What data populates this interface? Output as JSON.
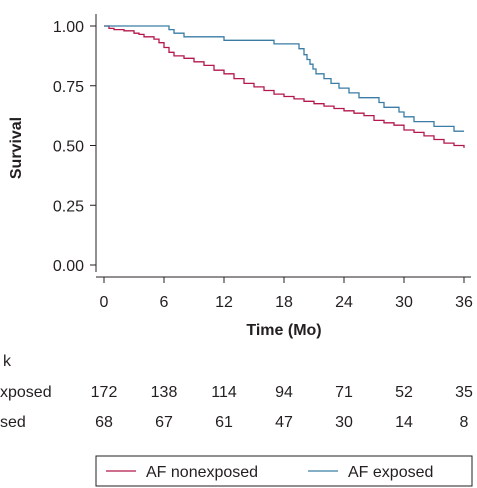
{
  "chart_data": {
    "type": "line",
    "ylabel": "Survival",
    "xlabel": "Time (Mo)",
    "xlim": [
      0,
      36
    ],
    "ylim": [
      0,
      1
    ],
    "x_ticks": [
      0,
      6,
      12,
      18,
      24,
      30,
      36
    ],
    "y_ticks": [
      "0.00",
      "0.25",
      "0.50",
      "0.75",
      "1.00"
    ],
    "grid": false,
    "legend_position": "bottom-right",
    "series": [
      {
        "name": "AF nonexposed",
        "color": "#b5174a",
        "step": true,
        "points": [
          [
            0,
            1.0
          ],
          [
            0.5,
            0.99
          ],
          [
            1.0,
            0.985
          ],
          [
            2.0,
            0.98
          ],
          [
            3.0,
            0.97
          ],
          [
            3.5,
            0.965
          ],
          [
            4.0,
            0.955
          ],
          [
            5.0,
            0.945
          ],
          [
            5.5,
            0.93
          ],
          [
            6.0,
            0.91
          ],
          [
            6.5,
            0.89
          ],
          [
            7.0,
            0.875
          ],
          [
            8.0,
            0.865
          ],
          [
            9.0,
            0.85
          ],
          [
            10.0,
            0.835
          ],
          [
            11.0,
            0.815
          ],
          [
            12.0,
            0.8
          ],
          [
            13.0,
            0.78
          ],
          [
            14.0,
            0.76
          ],
          [
            15.0,
            0.745
          ],
          [
            16.0,
            0.73
          ],
          [
            17.0,
            0.715
          ],
          [
            18.0,
            0.705
          ],
          [
            19.0,
            0.695
          ],
          [
            20.0,
            0.685
          ],
          [
            21.0,
            0.675
          ],
          [
            22.0,
            0.665
          ],
          [
            23.0,
            0.655
          ],
          [
            24.0,
            0.645
          ],
          [
            25.0,
            0.635
          ],
          [
            26.0,
            0.625
          ],
          [
            27.0,
            0.605
          ],
          [
            28.0,
            0.595
          ],
          [
            29.0,
            0.585
          ],
          [
            30.0,
            0.565
          ],
          [
            31.0,
            0.555
          ],
          [
            32.0,
            0.54
          ],
          [
            33.0,
            0.525
          ],
          [
            34.0,
            0.51
          ],
          [
            35.0,
            0.5
          ],
          [
            36.0,
            0.49
          ]
        ]
      },
      {
        "name": "AF exposed",
        "color": "#3a7ca5",
        "step": true,
        "points": [
          [
            0,
            1.0
          ],
          [
            6.0,
            1.0
          ],
          [
            6.5,
            0.985
          ],
          [
            7.0,
            0.97
          ],
          [
            8.0,
            0.955
          ],
          [
            11.0,
            0.955
          ],
          [
            12.0,
            0.94
          ],
          [
            16.0,
            0.94
          ],
          [
            17.0,
            0.925
          ],
          [
            19.0,
            0.925
          ],
          [
            19.5,
            0.905
          ],
          [
            20.0,
            0.88
          ],
          [
            20.3,
            0.86
          ],
          [
            20.6,
            0.84
          ],
          [
            20.9,
            0.82
          ],
          [
            21.2,
            0.8
          ],
          [
            22.0,
            0.78
          ],
          [
            22.7,
            0.76
          ],
          [
            23.5,
            0.74
          ],
          [
            24.5,
            0.72
          ],
          [
            25.5,
            0.7
          ],
          [
            27.5,
            0.68
          ],
          [
            28.0,
            0.66
          ],
          [
            29.5,
            0.64
          ],
          [
            30.0,
            0.62
          ],
          [
            31.0,
            0.6
          ],
          [
            33.0,
            0.58
          ],
          [
            35.0,
            0.56
          ],
          [
            36.0,
            0.56
          ]
        ]
      }
    ],
    "risk_table": {
      "title_partial": "k",
      "rows": [
        {
          "label_partial": "xposed",
          "values": [
            "172",
            "138",
            "114",
            "94",
            "71",
            "52",
            "35"
          ]
        },
        {
          "label_partial": "sed",
          "values": [
            "68",
            "67",
            "61",
            "47",
            "30",
            "14",
            "8"
          ]
        }
      ]
    }
  },
  "legend": {
    "items": [
      {
        "label": "AF nonexposed",
        "color": "#b5174a"
      },
      {
        "label": "AF exposed",
        "color": "#3a7ca5"
      }
    ]
  }
}
